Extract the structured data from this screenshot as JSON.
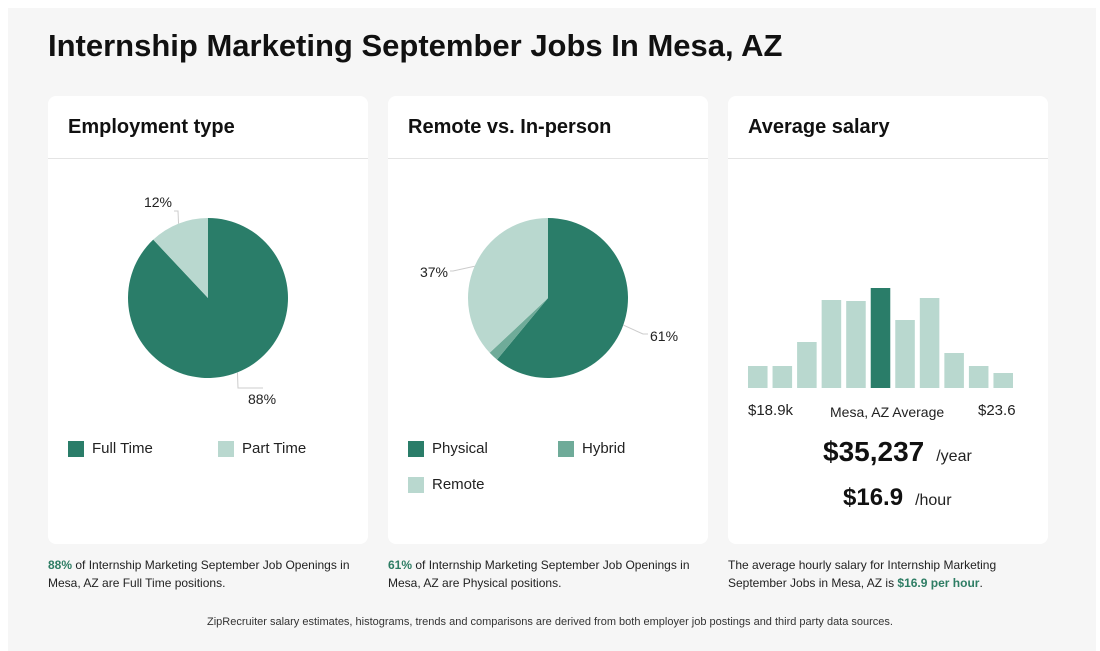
{
  "title": "Internship Marketing September Jobs In Mesa, AZ",
  "colors": {
    "dark": "#2a7d69",
    "mid": "#6fab99",
    "light": "#b9d8cf",
    "highlight": "#2e7d64"
  },
  "employment": {
    "title": "Employment type",
    "legend": [
      "Full Time",
      "Part Time"
    ],
    "caption_pct": "88%",
    "caption_rest": " of Internship Marketing September Job Openings in Mesa, AZ are Full Time positions."
  },
  "remote": {
    "title": "Remote vs. In-person",
    "legend": [
      "Physical",
      "Hybrid",
      "Remote"
    ],
    "caption_pct": "61%",
    "caption_rest": " of Internship Marketing September Job Openings in Mesa, AZ are Physical positions."
  },
  "salary": {
    "title": "Average salary",
    "min_label": "$18.9k",
    "mid_label": "Mesa, AZ Average",
    "max_label": "$23.6",
    "yearly": "$35,237",
    "yearly_unit": "/year",
    "hourly": "$16.9",
    "hourly_unit": "/hour",
    "caption_pre": "The average hourly salary for Internship Marketing September Jobs in Mesa, AZ is ",
    "caption_hl": "$16.9 per hour",
    "caption_post": "."
  },
  "footer": "ZipRecruiter salary estimates, histograms, trends and comparisons are derived from both employer job postings and third party data sources.",
  "chart_data": [
    {
      "type": "pie",
      "categories": [
        "Full Time",
        "Part Time"
      ],
      "values": [
        88,
        12
      ],
      "labels": [
        "88%",
        "12%"
      ]
    },
    {
      "type": "pie",
      "categories": [
        "Physical",
        "Hybrid",
        "Remote"
      ],
      "values": [
        61,
        2,
        37
      ],
      "labels": [
        "61%",
        "",
        "37%"
      ]
    },
    {
      "type": "bar",
      "values": [
        22,
        22,
        46,
        88,
        87,
        100,
        68,
        90,
        35,
        22,
        15
      ],
      "highlight_index": 5,
      "x_min_label": "$18.9k",
      "x_max_label": "$23.6"
    }
  ]
}
